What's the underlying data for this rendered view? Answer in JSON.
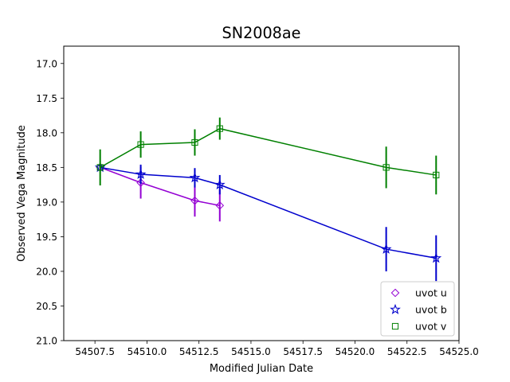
{
  "chart_data": {
    "type": "scatter",
    "title": "SN2008ae",
    "xlabel": "Modified Julian Date",
    "ylabel": "Observed Vega Magnitude",
    "xlim": [
      54506.0,
      54525.0
    ],
    "ylim": [
      21.0,
      16.75
    ],
    "y_inverted": true,
    "grid": false,
    "legend": "lower right",
    "x_ticks": [
      "54507.5",
      "54510.0",
      "54512.5",
      "54515.0",
      "54517.5",
      "54520.0",
      "54522.5",
      "54525.0"
    ],
    "y_ticks": [
      "17.0",
      "17.5",
      "18.0",
      "18.5",
      "19.0",
      "19.5",
      "20.0",
      "20.5",
      "21.0"
    ],
    "series": [
      {
        "name": "uvot u",
        "color": "#9400d3",
        "marker": "diamond",
        "x": [
          54507.75,
          54509.7,
          54512.3,
          54513.5
        ],
        "y": [
          18.5,
          18.72,
          18.98,
          19.05
        ],
        "err": [
          0.03,
          0.23,
          0.23,
          0.23
        ]
      },
      {
        "name": "uvot b",
        "color": "#0000cd",
        "marker": "star",
        "x": [
          54507.75,
          54509.7,
          54512.3,
          54513.5,
          54521.5,
          54523.9
        ],
        "y": [
          18.5,
          18.6,
          18.65,
          18.75,
          19.68,
          19.81
        ],
        "err": [
          0.03,
          0.14,
          0.14,
          0.14,
          0.32,
          0.33
        ]
      },
      {
        "name": "uvot v",
        "color": "#008000",
        "marker": "square",
        "x": [
          54507.75,
          54509.7,
          54512.3,
          54513.5,
          54521.5,
          54523.9
        ],
        "y": [
          18.5,
          18.17,
          18.14,
          17.94,
          18.5,
          18.61
        ],
        "err": [
          0.26,
          0.19,
          0.19,
          0.16,
          0.3,
          0.28
        ]
      }
    ]
  }
}
